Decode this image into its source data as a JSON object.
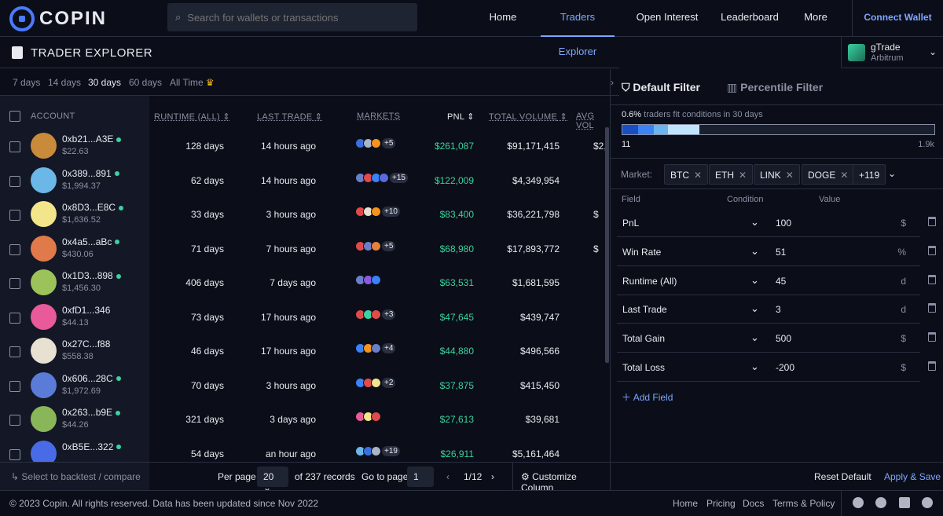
{
  "nav": {
    "brand": "COPIN",
    "search_placeholder": "Search for wallets or transactions",
    "links": [
      "Home",
      "Traders Explorer",
      "Open Interest",
      "Leaderboard",
      "More"
    ],
    "active": "Traders Explorer",
    "connect": "Connect Wallet"
  },
  "page": {
    "title": "TRADER EXPLORER"
  },
  "protocol": {
    "name": "gTrade",
    "network": "Arbitrum"
  },
  "time_filters": [
    "7 days",
    "14 days",
    "30 days",
    "60 days",
    "All Time"
  ],
  "time_active": "30 days",
  "table": {
    "headers": {
      "account": "ACCOUNT",
      "runtime": "RUNTIME (ALL)",
      "last_trade": "LAST TRADE",
      "markets": "MARKETS",
      "pnl": "PNL",
      "total_volume": "TOTAL VOLUME",
      "avg_volume": "AVG VOL"
    },
    "rows": [
      {
        "addr": "0xb21...A3E",
        "bal": "$22.63",
        "runtime": "128 days",
        "last": "14 hours ago",
        "more": "+5",
        "pnl": "$261,087",
        "vol": "$91,171,415",
        "avg": "$2,",
        "online": true,
        "color": "#c98a3a"
      },
      {
        "addr": "0x389...891",
        "bal": "$1,994.37",
        "runtime": "62 days",
        "last": "14 hours ago",
        "more": "+15",
        "pnl": "$122,009",
        "vol": "$4,349,954",
        "avg": "",
        "online": true,
        "color": "#6ab7e8"
      },
      {
        "addr": "0x8D3...E8C",
        "bal": "$1,636.52",
        "runtime": "33 days",
        "last": "3 hours ago",
        "more": "+10",
        "pnl": "$83,400",
        "vol": "$36,221,798",
        "avg": "$",
        "online": true,
        "color": "#f3e58a"
      },
      {
        "addr": "0x4a5...aBc",
        "bal": "$430.06",
        "runtime": "71 days",
        "last": "7 hours ago",
        "more": "+5",
        "pnl": "$68,980",
        "vol": "$17,893,772",
        "avg": "$",
        "online": true,
        "color": "#e07a4a"
      },
      {
        "addr": "0x1D3...898",
        "bal": "$1,456.30",
        "runtime": "406 days",
        "last": "7 days ago",
        "more": "",
        "pnl": "$63,531",
        "vol": "$1,681,595",
        "avg": "",
        "online": true,
        "color": "#9bc35a"
      },
      {
        "addr": "0xfD1...346",
        "bal": "$44.13",
        "runtime": "73 days",
        "last": "17 hours ago",
        "more": "+3",
        "pnl": "$47,645",
        "vol": "$439,747",
        "avg": "",
        "online": false,
        "color": "#e85a9a"
      },
      {
        "addr": "0x27C...f88",
        "bal": "$558.38",
        "runtime": "46 days",
        "last": "17 hours ago",
        "more": "+4",
        "pnl": "$44,880",
        "vol": "$496,566",
        "avg": "",
        "online": false,
        "color": "#e8e0d0"
      },
      {
        "addr": "0x606...28C",
        "bal": "$1,972.69",
        "runtime": "70 days",
        "last": "3 hours ago",
        "more": "+2",
        "pnl": "$37,875",
        "vol": "$415,450",
        "avg": "",
        "online": true,
        "color": "#5a7bd8"
      },
      {
        "addr": "0x263...b9E",
        "bal": "$44.26",
        "runtime": "321 days",
        "last": "3 days ago",
        "more": "",
        "pnl": "$27,613",
        "vol": "$39,681",
        "avg": "",
        "online": true,
        "color": "#8ab65a"
      },
      {
        "addr": "0xB5E...322",
        "bal": "",
        "runtime": "54 days",
        "last": "an hour ago",
        "more": "+19",
        "pnl": "$26,911",
        "vol": "$5,161,464",
        "avg": "",
        "online": true,
        "color": "#4a6be8"
      }
    ]
  },
  "table_footer": {
    "select_hint": "Select to backtest / compare",
    "per_page_label": "Per page",
    "per_page": "20",
    "records": "of 237 records",
    "goto_label": "Go to page",
    "goto_value": "1",
    "page": "1/12",
    "customize": "Customize Column"
  },
  "filter": {
    "tab_default": "Default Filter",
    "tab_percentile": "Percentile Filter",
    "fit_pct": "0.6%",
    "fit_text": "traders fit conditions in 30 days",
    "bar_min": "11",
    "bar_max": "1.9k",
    "market_label": "Market:",
    "markets": [
      "BTC",
      "ETH",
      "LINK",
      "DOGE"
    ],
    "markets_more": "+119",
    "col_field": "Field",
    "col_condition": "Condition",
    "col_value": "Value",
    "rows": [
      {
        "field": "PnL",
        "value": "100",
        "unit": "$"
      },
      {
        "field": "Win Rate",
        "value": "51",
        "unit": "%"
      },
      {
        "field": "Runtime (All)",
        "value": "45",
        "unit": "d"
      },
      {
        "field": "Last Trade",
        "value": "3",
        "unit": "d"
      },
      {
        "field": "Total Gain",
        "value": "500",
        "unit": "$"
      },
      {
        "field": "Total Loss",
        "value": "-200",
        "unit": "$"
      }
    ],
    "add_field": "Add Field",
    "reset": "Reset Default",
    "apply": "Apply & Save"
  },
  "footer": {
    "copyright": "© 2023 Copin. All rights reserved. Data has been updated since Nov 2022",
    "links": [
      "Home",
      "Pricing",
      "Docs",
      "Terms & Policy"
    ]
  },
  "colors": {
    "accent": "#7ea6ff",
    "positive": "#3ad29f",
    "bg": "#0b0e18"
  }
}
